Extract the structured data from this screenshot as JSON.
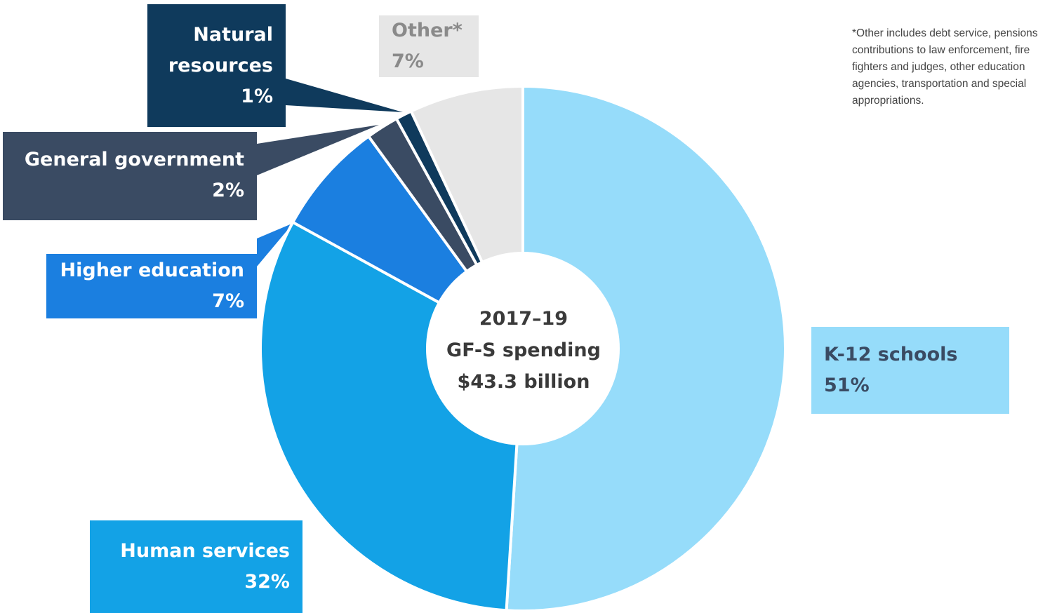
{
  "chart_data": {
    "type": "pie",
    "donut": true,
    "slices": [
      {
        "name": "K-12 schools",
        "value": 51,
        "color": "#96dcfa"
      },
      {
        "name": "Human services",
        "value": 32,
        "color": "#13a2e6"
      },
      {
        "name": "Higher education",
        "value": 7,
        "color": "#1b7fe0"
      },
      {
        "name": "General government",
        "value": 2,
        "color": "#3a4b63"
      },
      {
        "name": "Natural resources",
        "value": 1,
        "color": "#0f3a5c"
      },
      {
        "name": "Other*",
        "value": 7,
        "color": "#e6e6e6"
      }
    ],
    "center_label": [
      "2017–19",
      "GF-S spending",
      "$43.3 billion"
    ],
    "labels": {
      "natural": {
        "name_line1": "Natural",
        "name_line2": "resources",
        "pct": "1%"
      },
      "other": {
        "name": "Other*",
        "pct": "7%"
      },
      "general": {
        "name": "General government",
        "pct": "2%"
      },
      "higher": {
        "name": "Higher education",
        "pct": "7%"
      },
      "k12": {
        "name": "K-12 schools",
        "pct": "51%"
      },
      "human": {
        "name": "Human services",
        "pct": "32%"
      }
    },
    "footnote": "*Other includes debt service, pensions contributions to law enforcement, fire fighters and judges, other education agencies, transportation and special appropriations."
  }
}
